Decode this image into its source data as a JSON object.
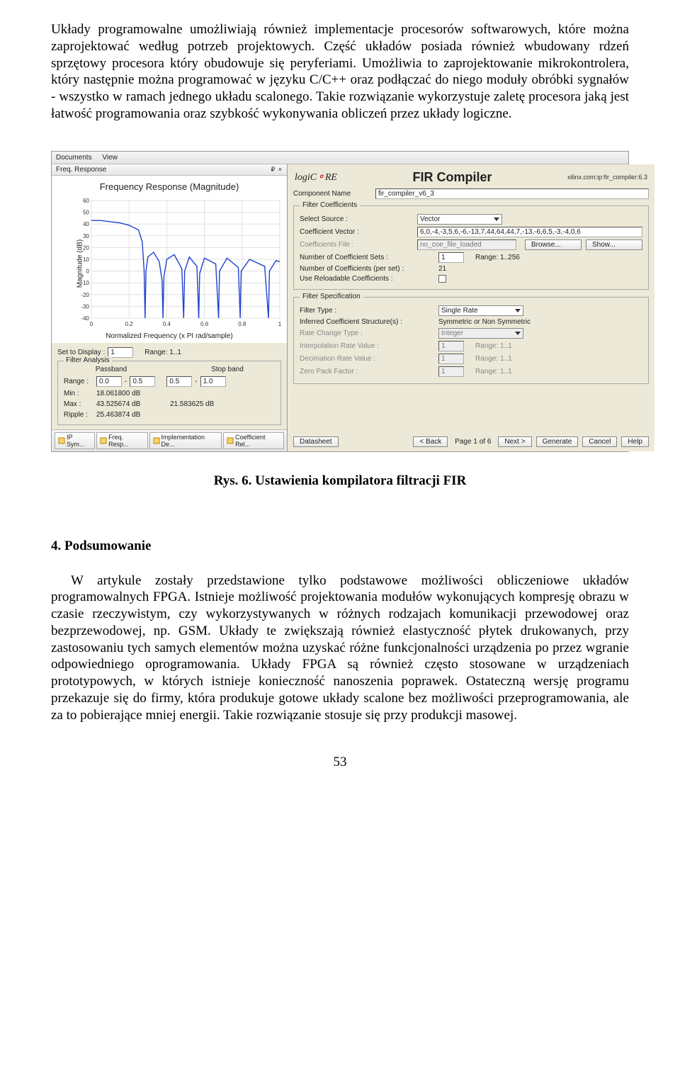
{
  "para1": "Układy programowalne umożliwiają również implementacje procesorów softwarowych, które można zaprojektować według potrzeb projektowych. Część układów posiada również wbudowany rdzeń sprzętowy procesora który obudowuje się peryferiami. Umożliwia to zaprojektowanie mikrokontrolera, który następnie można programować w języku C/C++ oraz podłączać do niego moduły obróbki sygnałów - wszystko w ramach jednego układu scalonego. Takie rozwiązanie wykorzystuje zaletę procesora jaką jest łatwość programowania oraz szybkość wykonywania obliczeń przez układy logiczne.",
  "caption": "Rys. 6. Ustawienia kompilatora filtracji FIR",
  "heading": "4.  Podsumowanie",
  "para2": "W artykule zostały przedstawione tylko podstawowe możliwości obliczeniowe układów programowalnych FPGA. Istnieje możliwość projektowania modułów wykonujących kompresję obrazu w czasie rzeczywistym, czy wykorzystywanych w różnych rodzajach komunikacji przewodowej oraz bezprzewodowej, np. GSM. Układy te zwiększają również elastyczność płytek drukowanych, przy zastosowaniu tych samych elementów można uzyskać różne funkcjonalności urządzenia po przez wgranie odpowiedniego oprogramowania. Układy FPGA są również często stosowane w urządzeniach prototypowych, w których istnieje konieczność nanoszenia poprawek. Ostateczną wersję programu przekazuje się do firmy, która produkuje gotowe układy scalone bez możliwości przeprogramowania, ale za to pobierające mniej energii. Takie rozwiązanie stosuje się przy produkcji masowej.",
  "page_num": "53",
  "ui": {
    "menu": {
      "documents": "Documents",
      "view": "View"
    },
    "left": {
      "panel_title": "Freq. Response",
      "panel_close": "₽ ×",
      "chart_title": "Frequency Response (Magnitude)",
      "chart_xlabel": "Normalized Frequency (x PI rad/sample)",
      "chart_ylabel": "Magnitude (dB)",
      "set_display_label": "Set to Display :",
      "set_display_value": "1",
      "set_display_range": "Range: 1..1",
      "filter_analysis_legend": "Filter Analysis",
      "passband_hdr": "Passband",
      "stopband_hdr": "Stop band",
      "range_label": "Range :",
      "pb_lo": "0.0",
      "pb_hi": "0.5",
      "sb_lo": "0.5",
      "sb_hi": "1.0",
      "min_label": "Min :",
      "min_val": "18.061800 dB",
      "max_label": "Max :",
      "max_val": "43.525674 dB",
      "sb_max_val": "21.583625 dB",
      "ripple_label": "Ripple :",
      "ripple_val": "25.463874 dB",
      "tabs": [
        "IP Sym...",
        "Freq. Resp...",
        "Implementation De...",
        "Coefficient Rel..."
      ]
    },
    "right": {
      "logo_text": "logiC",
      "logo_suffix": "RE",
      "title": "FIR Compiler",
      "ip_tag": "xilinx.com:ip:fir_compiler:6.3",
      "comp_name_label": "Component Name",
      "comp_name_val": "fir_compiler_v6_3",
      "fc_legend": "Filter Coefficients",
      "select_source_label": "Select Source :",
      "select_source_val": "Vector",
      "coef_vector_label": "Coefficient Vector :",
      "coef_vector_val": "6,0,-4,-3,5,6,-6,-13,7,44,64,44,7,-13,-6,6,5,-3,-4,0,6",
      "coef_file_label": "Coefficients File :",
      "coef_file_val": "no_coe_file_loaded",
      "browse_btn": "Browse...",
      "show_btn": "Show...",
      "num_sets_label": "Number of Coefficient Sets :",
      "num_sets_val": "1",
      "num_sets_range": "Range: 1..256",
      "num_per_set_label": "Number of Coefficients (per set) :",
      "num_per_set_val": "21",
      "reloadable_label": "Use Reloadable Coefficients :",
      "fs_legend": "Filter Specification",
      "filter_type_label": "Filter Type :",
      "filter_type_val": "Single Rate",
      "inferred_label": "Inferred Coefficient Structure(s) :",
      "inferred_val": "Symmetric or Non Symmetric",
      "rate_change_label": "Rate Change Type :",
      "rate_change_val": "Integer",
      "interp_label": "Interpolation Rate Value :",
      "interp_val": "1",
      "interp_range": "Range: 1..1",
      "decim_label": "Decimation Rate Value :",
      "decim_val": "1",
      "decim_range": "Range: 1..1",
      "zero_label": "Zero Pack Factor :",
      "zero_val": "1",
      "zero_range": "Range: 1..1",
      "datasheet_btn": "Datasheet",
      "back_btn": "< Back",
      "page_info": "Page 1 of 6",
      "next_btn": "Next >",
      "generate_btn": "Generate",
      "cancel_btn": "Cancel",
      "help_btn": "Help"
    },
    "chart": {
      "yticks": [
        60,
        50,
        40,
        30,
        20,
        10,
        0,
        -10,
        -20,
        -30,
        -40
      ],
      "xticks": [
        0,
        0.2,
        0.4,
        0.6,
        0.8,
        1
      ],
      "line_color": "#2040d0",
      "grid_color": "#e0e0e0",
      "bg": "#ffffff",
      "poly_points": [
        [
          0.0,
          43
        ],
        [
          0.05,
          43
        ],
        [
          0.1,
          42
        ],
        [
          0.15,
          41
        ],
        [
          0.2,
          39
        ],
        [
          0.25,
          35
        ],
        [
          0.27,
          25
        ],
        [
          0.28,
          0
        ],
        [
          0.285,
          -40
        ],
        [
          0.29,
          0
        ],
        [
          0.3,
          12
        ],
        [
          0.33,
          16
        ],
        [
          0.36,
          8
        ],
        [
          0.375,
          -8
        ],
        [
          0.38,
          -40
        ],
        [
          0.385,
          -5
        ],
        [
          0.4,
          10
        ],
        [
          0.44,
          14
        ],
        [
          0.48,
          2
        ],
        [
          0.49,
          -40
        ],
        [
          0.495,
          0
        ],
        [
          0.52,
          12
        ],
        [
          0.56,
          4
        ],
        [
          0.57,
          -40
        ],
        [
          0.575,
          -2
        ],
        [
          0.6,
          11
        ],
        [
          0.66,
          6
        ],
        [
          0.675,
          -40
        ],
        [
          0.68,
          0
        ],
        [
          0.72,
          11
        ],
        [
          0.78,
          3
        ],
        [
          0.79,
          -40
        ],
        [
          0.795,
          0
        ],
        [
          0.84,
          10
        ],
        [
          0.92,
          4
        ],
        [
          0.94,
          -40
        ],
        [
          0.945,
          0
        ],
        [
          0.98,
          9
        ],
        [
          1.0,
          8
        ]
      ]
    }
  }
}
